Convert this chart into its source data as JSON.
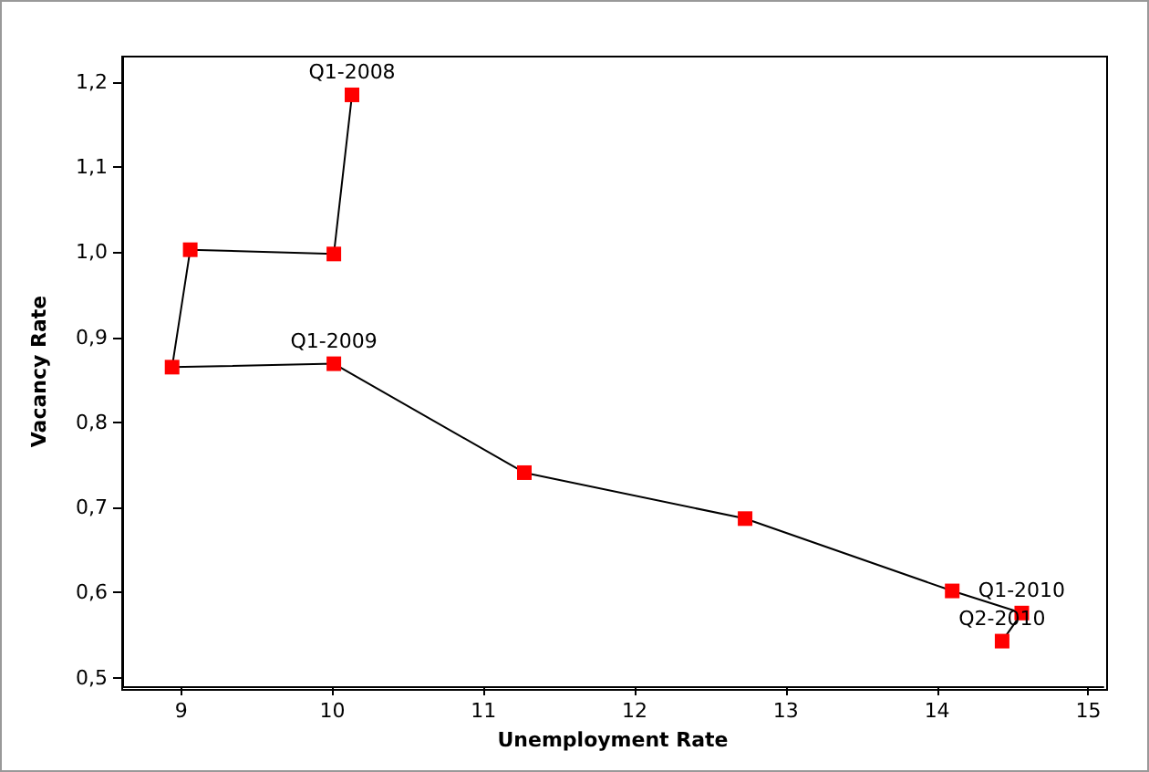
{
  "chart_data": {
    "type": "line",
    "xlabel": "Unemployment Rate",
    "ylabel": "Vacancy Rate",
    "x": [
      10.13,
      10.01,
      9.06,
      8.94,
      10.01,
      11.27,
      12.73,
      14.1,
      14.56,
      14.43
    ],
    "series": [
      {
        "color": "#ff0000",
        "values": [
          1.185,
          0.998,
          1.003,
          0.865,
          0.869,
          0.741,
          0.687,
          0.602,
          0.576,
          0.543
        ]
      }
    ],
    "marker": "square",
    "line_style": "solid",
    "grid": false,
    "xlim": [
      8.61,
      15.1
    ],
    "xticks": [
      9,
      10,
      11,
      12,
      13,
      14,
      15
    ],
    "ylim": [
      0.49,
      1.23
    ],
    "yticks": [
      {
        "value": 0.5,
        "label": "0,5"
      },
      {
        "value": 0.6,
        "label": "0,6"
      },
      {
        "value": 0.7,
        "label": "0,7"
      },
      {
        "value": 0.8,
        "label": "0,8"
      },
      {
        "value": 0.9,
        "label": "0,9"
      },
      {
        "value": 1.0,
        "label": "1,0"
      },
      {
        "value": 1.1,
        "label": "1,1"
      },
      {
        "value": 1.2,
        "label": "1,2"
      }
    ],
    "annotations": [
      {
        "text": "Q1-2008",
        "x": 10.13,
        "y": 1.185
      },
      {
        "text": "Q1-2009",
        "x": 10.01,
        "y": 0.869
      },
      {
        "text": "Q1-2010",
        "x": 14.56,
        "y": 0.576
      },
      {
        "text": "Q2-2010",
        "x": 14.43,
        "y": 0.543
      }
    ]
  }
}
